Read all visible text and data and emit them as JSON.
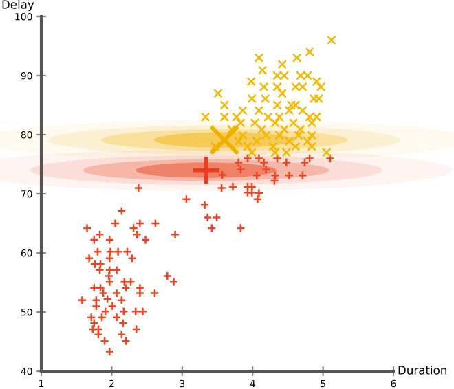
{
  "chart_data": {
    "type": "scatter",
    "xlabel": "Duration",
    "ylabel": "Delay",
    "xlim": [
      1,
      6
    ],
    "ylim": [
      40,
      100
    ],
    "xticks": [
      1,
      2,
      3,
      4,
      5,
      6
    ],
    "yticks": [
      40,
      50,
      60,
      70,
      80,
      90,
      100
    ],
    "grid": false,
    "legend": false,
    "series": [
      {
        "color": "#ee4422",
        "marker": "plus",
        "x": [
          1.65,
          1.75,
          1.83,
          1.97,
          2.14,
          2.05,
          2.31,
          2.4,
          2.36,
          2.48,
          2.62,
          2.9,
          3.06,
          3.32,
          3.36,
          3.49,
          3.42,
          2.38,
          3.56,
          1.8,
          1.98,
          2.09,
          2.22,
          1.68,
          1.84,
          1.76,
          1.97,
          2.29,
          1.83,
          2.07,
          1.96,
          1.97,
          2.18,
          2.27,
          1.75,
          1.84,
          2.2,
          2.4,
          2.07,
          1.88,
          2.61,
          2.79,
          2.88,
          1.58,
          1.78,
          1.94,
          2.14,
          2.4,
          1.78,
          2.01,
          1.91,
          2.17,
          2.34,
          2.44,
          1.86,
          2.07,
          1.75,
          2.16,
          1.81,
          1.73,
          2.35,
          1.81,
          2.14,
          1.9,
          2.2,
          1.97,
          1.71,
          1.97,
          3.72,
          3.93,
          3.99,
          3.93,
          3.99,
          4.09,
          4.07,
          4.31,
          3.83,
          3.57,
          3.8,
          3.93,
          4.09,
          4.16,
          4.35,
          4.19,
          4.32,
          4.52,
          4.48,
          4.71,
          4.74,
          4.81,
          5.1,
          4.06,
          3.83
        ],
        "values": [
          64.2,
          62.2,
          63.1,
          62.2,
          67.1,
          65,
          64.2,
          65,
          63.1,
          62.2,
          65,
          63.1,
          69.1,
          68.1,
          66,
          66,
          64.2,
          71,
          71,
          60.2,
          60.2,
          60.2,
          60.2,
          59.1,
          58.1,
          58.1,
          59.1,
          59.1,
          57.1,
          57.1,
          56.1,
          55.1,
          55.1,
          55.1,
          54.1,
          54.1,
          54.1,
          54.1,
          53.2,
          53.2,
          53.2,
          56.1,
          55.1,
          52,
          52,
          52.2,
          52,
          53.2,
          51,
          51,
          50.1,
          50.1,
          50.1,
          50.1,
          49.1,
          49.1,
          48.1,
          48.1,
          47.1,
          47.1,
          47.1,
          46.2,
          46.2,
          45.1,
          45.1,
          43.3,
          49.1,
          57.1,
          71.2,
          71.2,
          71.2,
          70.2,
          70.2,
          70.1,
          69.1,
          72.2,
          64.2,
          73.2,
          75.3,
          76.0,
          76.0,
          75.3,
          76.0,
          74.1,
          73.1,
          73.1,
          75.3,
          73.1,
          75.3,
          76.0,
          76.0,
          73.1,
          74.1
        ]
      },
      {
        "color": "#f5b800",
        "marker": "cross",
        "x": [
          5.12,
          4.81,
          4.63,
          4.09,
          4.42,
          4.14,
          4.35,
          4.45,
          4.68,
          4.78,
          3.98,
          4.91,
          4.16,
          4.35,
          4.61,
          4.71,
          4.97,
          3.51,
          4.42,
          3.99,
          4.18,
          4.87,
          4.94,
          3.6,
          4.35,
          4.55,
          4.61,
          3.86,
          4.09,
          4.52,
          4.71,
          3.33,
          3.6,
          3.77,
          4.22,
          4.38,
          4.81,
          4.91,
          3.83,
          4.03,
          4.32,
          4.58,
          4.84,
          3.7,
          4.13,
          4.45,
          4.68,
          3.86,
          4.19,
          4.38,
          4.65,
          4.84,
          3.8,
          4.06,
          4.52,
          4.78,
          3.47,
          3.93,
          4.29,
          4.61,
          4.84,
          3.99,
          4.32,
          4.48,
          5.05
        ],
        "values": [
          96.0,
          94.0,
          93.0,
          93.0,
          91.9,
          90.9,
          90.0,
          90.0,
          90.0,
          90.0,
          89.0,
          89.0,
          88.1,
          88.1,
          88.1,
          88.1,
          88.1,
          87.0,
          87.0,
          86.1,
          86.1,
          86.1,
          86.1,
          85.0,
          85.0,
          85.0,
          85.0,
          84.1,
          84.1,
          84.1,
          84.1,
          83.0,
          83.0,
          83.0,
          83.0,
          83.0,
          83.0,
          83.0,
          82.0,
          82.0,
          82.0,
          82.0,
          82.0,
          80.9,
          80.9,
          80.9,
          80.9,
          79.9,
          79.9,
          79.9,
          79.9,
          79.9,
          78.9,
          78.9,
          78.9,
          78.9,
          78.0,
          78.0,
          78.0,
          78.0,
          78.0,
          77.0,
          77.0,
          77.0,
          77.0
        ]
      },
      {
        "color": "#e8401c",
        "marker": "plus",
        "x": [
          3.34
        ],
        "values": [
          74.0
        ]
      },
      {
        "color": "#f0b000",
        "marker": "cross",
        "x": [
          3.6
        ],
        "values": [
          79.1
        ]
      }
    ]
  }
}
